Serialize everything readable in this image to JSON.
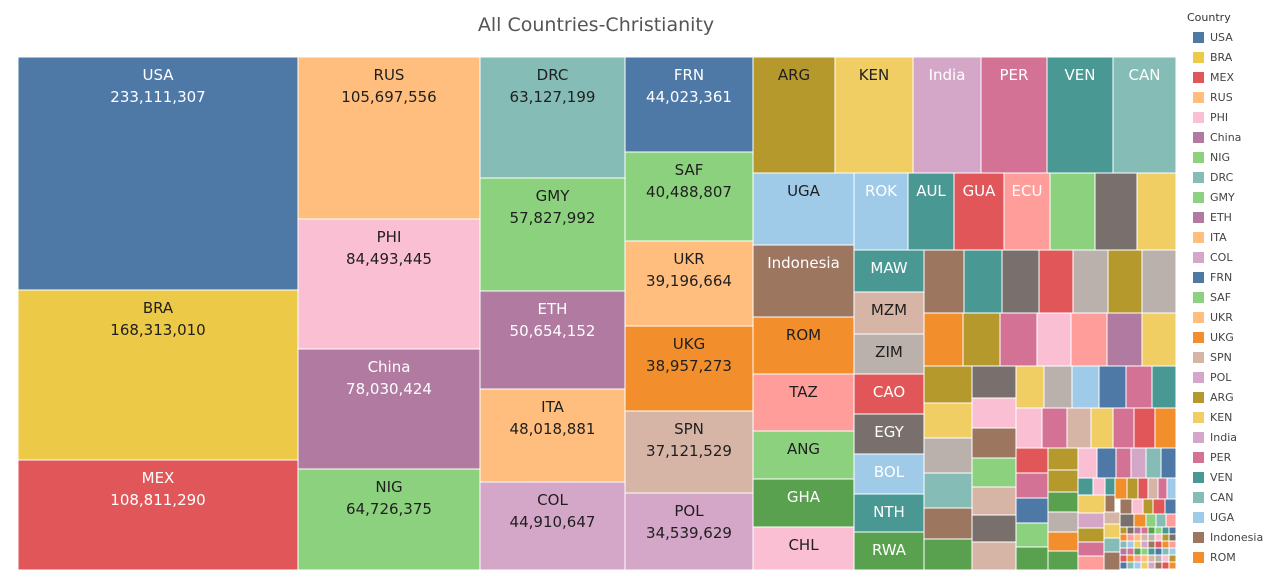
{
  "title": "All Countries-Christianity",
  "legend": {
    "title": "Country",
    "items": [
      {
        "label": "USA",
        "color": "#4e79a7"
      },
      {
        "label": "BRA",
        "color": "#edc948"
      },
      {
        "label": "MEX",
        "color": "#e15759"
      },
      {
        "label": "RUS",
        "color": "#ffbe7d"
      },
      {
        "label": "PHI",
        "color": "#fabfd2"
      },
      {
        "label": "China",
        "color": "#b07aa1"
      },
      {
        "label": "NIG",
        "color": "#8cd17d"
      },
      {
        "label": "DRC",
        "color": "#86bcb6"
      },
      {
        "label": "GMY",
        "color": "#8cd17d"
      },
      {
        "label": "ETH",
        "color": "#b07aa1"
      },
      {
        "label": "ITA",
        "color": "#ffbe7d"
      },
      {
        "label": "COL",
        "color": "#d4a6c8"
      },
      {
        "label": "FRN",
        "color": "#4e79a7"
      },
      {
        "label": "SAF",
        "color": "#8cd17d"
      },
      {
        "label": "UKR",
        "color": "#ffbe7d"
      },
      {
        "label": "UKG",
        "color": "#f28e2b"
      },
      {
        "label": "SPN",
        "color": "#d7b5a6"
      },
      {
        "label": "POL",
        "color": "#d4a6c8"
      },
      {
        "label": "ARG",
        "color": "#b6992d"
      },
      {
        "label": "KEN",
        "color": "#f1ce63"
      },
      {
        "label": "India",
        "color": "#d4a6c8"
      },
      {
        "label": "PER",
        "color": "#d37295"
      },
      {
        "label": "VEN",
        "color": "#499894"
      },
      {
        "label": "CAN",
        "color": "#86bcb6"
      },
      {
        "label": "UGA",
        "color": "#a0cbe8"
      },
      {
        "label": "Indonesia",
        "color": "#9d7660"
      },
      {
        "label": "ROM",
        "color": "#f28e2b"
      }
    ]
  },
  "chart_data": {
    "type": "treemap",
    "title": "All Countries-Christianity",
    "colors": {
      "blue": "#4e79a7",
      "yellow": "#edc948",
      "red": "#e15759",
      "peach": "#ffbe7d",
      "pink": "#fabfd2",
      "purple": "#b07aa1",
      "green": "#8cd17d",
      "teal": "#86bcb6",
      "lilac": "#d4a6c8",
      "orange": "#f28e2b",
      "tan": "#d7b5a6",
      "olive": "#b6992d",
      "gold": "#f1ce63",
      "rose": "#d37295",
      "darkteal": "#499894",
      "lightblue": "#a0cbe8",
      "brown": "#9d7660",
      "salmon": "#ff9d9a",
      "gray": "#bab0ac",
      "darkgray": "#79706e",
      "darkgreen": "#59a14f"
    },
    "countries": [
      {
        "code": "USA",
        "value": 233111307,
        "color": "#4e79a7"
      },
      {
        "code": "BRA",
        "value": 168313010,
        "color": "#edc948"
      },
      {
        "code": "MEX",
        "value": 108811290,
        "color": "#e15759"
      },
      {
        "code": "RUS",
        "value": 105697556,
        "color": "#ffbe7d"
      },
      {
        "code": "PHI",
        "value": 84493445,
        "color": "#fabfd2"
      },
      {
        "code": "China",
        "value": 78030424,
        "color": "#b07aa1"
      },
      {
        "code": "NIG",
        "value": 64726375,
        "color": "#8cd17d"
      },
      {
        "code": "DRC",
        "value": 63127199,
        "color": "#86bcb6"
      },
      {
        "code": "GMY",
        "value": 57827992,
        "color": "#8cd17d"
      },
      {
        "code": "ETH",
        "value": 50654152,
        "color": "#b07aa1"
      },
      {
        "code": "ITA",
        "value": 48018881,
        "color": "#ffbe7d"
      },
      {
        "code": "COL",
        "value": 44910647,
        "color": "#d4a6c8"
      },
      {
        "code": "FRN",
        "value": 44023361,
        "color": "#4e79a7"
      },
      {
        "code": "SAF",
        "value": 40488807,
        "color": "#8cd17d"
      },
      {
        "code": "UKR",
        "value": 39196664,
        "color": "#ffbe7d"
      },
      {
        "code": "UKG",
        "value": 38957273,
        "color": "#f28e2b"
      },
      {
        "code": "SPN",
        "value": 37121529,
        "color": "#d7b5a6"
      },
      {
        "code": "POL",
        "value": 34539629,
        "color": "#d4a6c8"
      },
      {
        "code": "ARG",
        "value": null,
        "color": "#b6992d"
      },
      {
        "code": "KEN",
        "value": null,
        "color": "#f1ce63"
      },
      {
        "code": "India",
        "value": null,
        "color": "#d4a6c8"
      },
      {
        "code": "PER",
        "value": null,
        "color": "#d37295"
      },
      {
        "code": "VEN",
        "value": null,
        "color": "#499894"
      },
      {
        "code": "CAN",
        "value": null,
        "color": "#86bcb6"
      },
      {
        "code": "UGA",
        "value": null,
        "color": "#a0cbe8"
      },
      {
        "code": "ROK",
        "value": null,
        "color": "#a0cbe8"
      },
      {
        "code": "AUL",
        "value": null,
        "color": "#499894"
      },
      {
        "code": "GUA",
        "value": null,
        "color": "#e15759"
      },
      {
        "code": "ECU",
        "value": null,
        "color": "#ff9d9a"
      },
      {
        "code": "Indonesia",
        "value": null,
        "color": "#9d7660"
      },
      {
        "code": "MAW",
        "value": null,
        "color": "#499894"
      },
      {
        "code": "MZM",
        "value": null,
        "color": "#d7b5a6"
      },
      {
        "code": "ZIM",
        "value": null,
        "color": "#bab0ac"
      },
      {
        "code": "ROM",
        "value": null,
        "color": "#f28e2b"
      },
      {
        "code": "CAO",
        "value": null,
        "color": "#e15759"
      },
      {
        "code": "TAZ",
        "value": null,
        "color": "#ff9d9a"
      },
      {
        "code": "EGY",
        "value": null,
        "color": "#79706e"
      },
      {
        "code": "ANG",
        "value": null,
        "color": "#8cd17d"
      },
      {
        "code": "BOL",
        "value": null,
        "color": "#a0cbe8"
      },
      {
        "code": "GHA",
        "value": null,
        "color": "#59a14f"
      },
      {
        "code": "NTH",
        "value": null,
        "color": "#499894"
      },
      {
        "code": "CHL",
        "value": null,
        "color": "#fabfd2"
      },
      {
        "code": "RWA",
        "value": null,
        "color": "#59a14f"
      }
    ]
  }
}
